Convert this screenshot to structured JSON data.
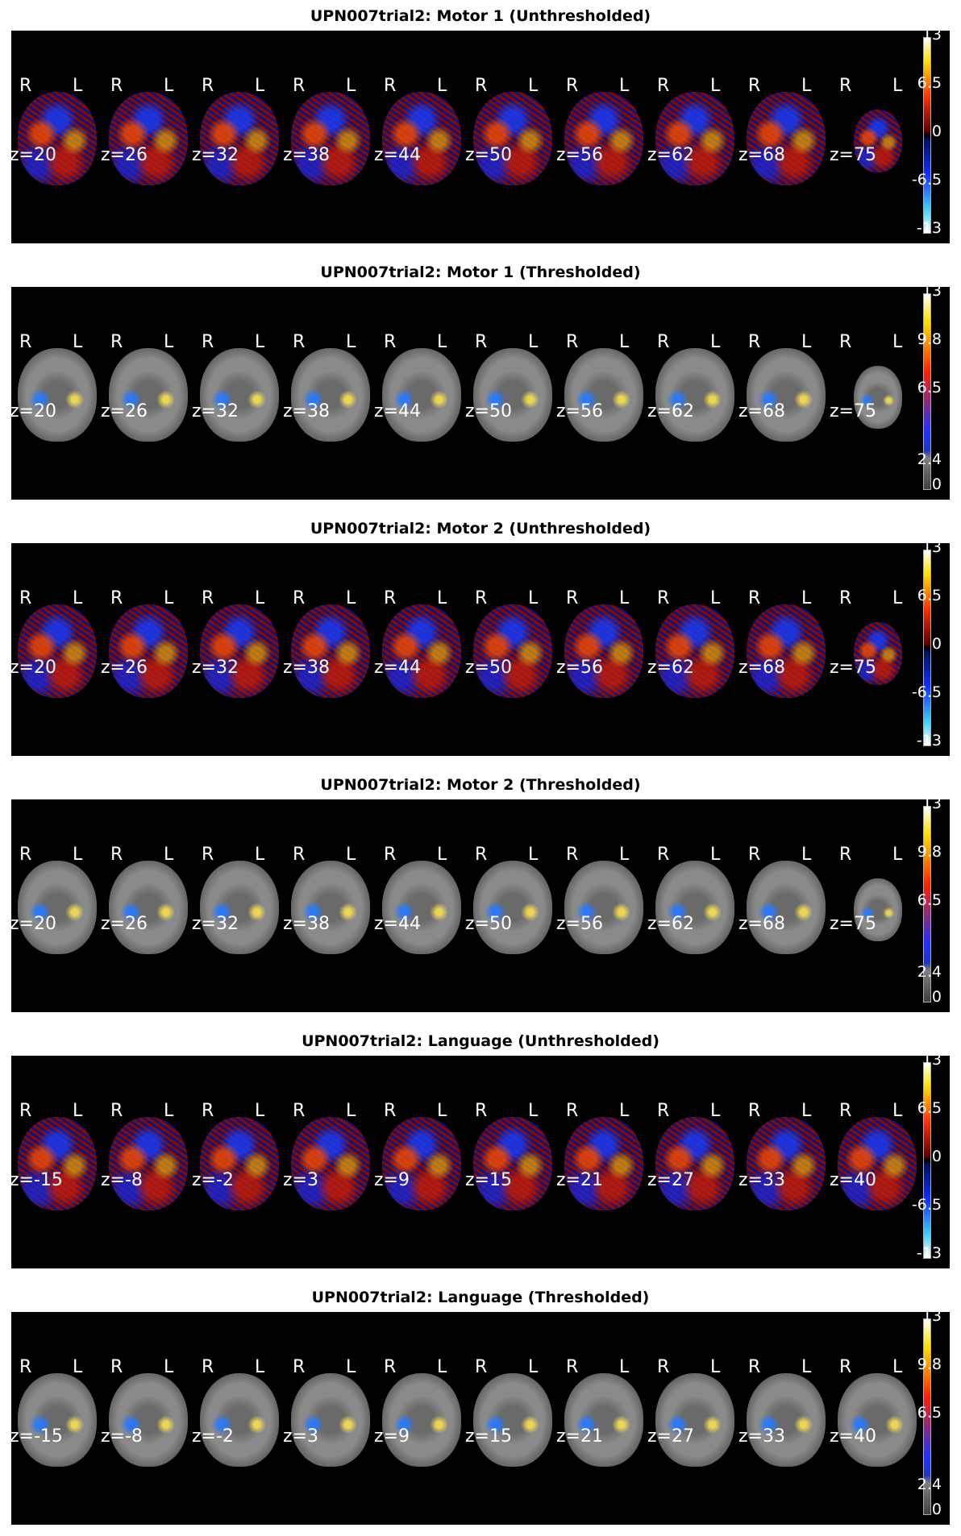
{
  "panels": [
    {
      "title": "UPN007trial2: Motor 1 (Unthresholded)",
      "mode": "unthresholded",
      "slices": [
        "z=20",
        "z=26",
        "z=32",
        "z=38",
        "z=44",
        "z=50",
        "z=56",
        "z=62",
        "z=68",
        "z=75"
      ],
      "colorbar_ticks": [
        "13",
        "6.5",
        "0",
        "-6.5",
        "-13"
      ]
    },
    {
      "title": "UPN007trial2: Motor 1 (Thresholded)",
      "mode": "thresholded",
      "slices": [
        "z=20",
        "z=26",
        "z=32",
        "z=38",
        "z=44",
        "z=50",
        "z=56",
        "z=62",
        "z=68",
        "z=75"
      ],
      "colorbar_ticks": [
        "13",
        "9.8",
        "6.5",
        "2.4",
        "0"
      ]
    },
    {
      "title": "UPN007trial2: Motor 2 (Unthresholded)",
      "mode": "unthresholded",
      "slices": [
        "z=20",
        "z=26",
        "z=32",
        "z=38",
        "z=44",
        "z=50",
        "z=56",
        "z=62",
        "z=68",
        "z=75"
      ],
      "colorbar_ticks": [
        "13",
        "6.5",
        "0",
        "-6.5",
        "-13"
      ]
    },
    {
      "title": "UPN007trial2: Motor 2 (Thresholded)",
      "mode": "thresholded",
      "slices": [
        "z=20",
        "z=26",
        "z=32",
        "z=38",
        "z=44",
        "z=50",
        "z=56",
        "z=62",
        "z=68",
        "z=75"
      ],
      "colorbar_ticks": [
        "13",
        "9.8",
        "6.5",
        "2.4",
        "0"
      ]
    },
    {
      "title": "UPN007trial2: Language (Unthresholded)",
      "mode": "unthresholded",
      "slices": [
        "z=-15",
        "z=-8",
        "z=-2",
        "z=3",
        "z=9",
        "z=15",
        "z=21",
        "z=27",
        "z=33",
        "z=40"
      ],
      "colorbar_ticks": [
        "13",
        "6.5",
        "0",
        "-6.5",
        "-13"
      ]
    },
    {
      "title": "UPN007trial2: Language (Thresholded)",
      "mode": "thresholded",
      "slices": [
        "z=-15",
        "z=-8",
        "z=-2",
        "z=3",
        "z=9",
        "z=15",
        "z=21",
        "z=27",
        "z=33",
        "z=40"
      ],
      "colorbar_ticks": [
        "13",
        "9.8",
        "6.5",
        "2.4",
        "0"
      ]
    }
  ],
  "orientation_labels": {
    "right": "R",
    "left": "L"
  }
}
